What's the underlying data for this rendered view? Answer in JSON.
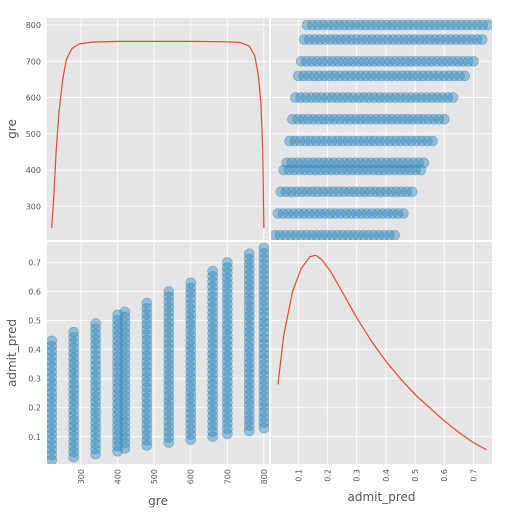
{
  "chart_data": {
    "type": "scatter-matrix",
    "variables": [
      "gre",
      "admit_pred"
    ],
    "colors": {
      "background": "#e5e5e5",
      "grid": "#ffffff",
      "points": "#348abd",
      "kde": "#e24a33"
    },
    "grid": true,
    "panels": [
      {
        "row": 0,
        "col": 0,
        "type": "line",
        "name": "gre-kde",
        "x_range": [
          220,
          800
        ],
        "y_range_labels": [
          220,
          800
        ],
        "kde_curve_value": [
          [
            220,
            240
          ],
          [
            226,
            330
          ],
          [
            232,
            450
          ],
          [
            240,
            560
          ],
          [
            250,
            650
          ],
          [
            260,
            705
          ],
          [
            275,
            735
          ],
          [
            295,
            748
          ],
          [
            330,
            753
          ],
          [
            400,
            755
          ],
          [
            500,
            755
          ],
          [
            600,
            755
          ],
          [
            700,
            754
          ],
          [
            735,
            752
          ],
          [
            760,
            742
          ],
          [
            775,
            715
          ],
          [
            785,
            660
          ],
          [
            792,
            580
          ],
          [
            797,
            450
          ],
          [
            800,
            240
          ]
        ]
      },
      {
        "row": 0,
        "col": 1,
        "type": "scatter",
        "name": "gre-vs-admit_pred",
        "x_variable": "admit_pred",
        "y_variable": "gre",
        "x_range": [
          0.02,
          0.75
        ],
        "y_range": [
          218,
          803
        ],
        "x_ticks": [
          0.1,
          0.2,
          0.3,
          0.4,
          0.5,
          0.6,
          0.7
        ],
        "y_ticks": [
          300,
          400,
          500,
          600,
          700,
          800
        ],
        "y_tick_labels": [
          "300",
          "400",
          "500",
          "600",
          "700",
          "800"
        ],
        "rows": [
          {
            "y": 220,
            "x_min": 0.02,
            "x_max": 0.43
          },
          {
            "y": 280,
            "x_min": 0.03,
            "x_max": 0.46
          },
          {
            "y": 340,
            "x_min": 0.04,
            "x_max": 0.49
          },
          {
            "y": 400,
            "x_min": 0.05,
            "x_max": 0.52
          },
          {
            "y": 420,
            "x_min": 0.06,
            "x_max": 0.53
          },
          {
            "y": 480,
            "x_min": 0.07,
            "x_max": 0.56
          },
          {
            "y": 540,
            "x_min": 0.08,
            "x_max": 0.6
          },
          {
            "y": 600,
            "x_min": 0.09,
            "x_max": 0.63
          },
          {
            "y": 660,
            "x_min": 0.1,
            "x_max": 0.67
          },
          {
            "y": 700,
            "x_min": 0.11,
            "x_max": 0.7
          },
          {
            "y": 760,
            "x_min": 0.12,
            "x_max": 0.73
          },
          {
            "y": 800,
            "x_min": 0.13,
            "x_max": 0.75
          }
        ]
      },
      {
        "row": 1,
        "col": 0,
        "type": "scatter",
        "name": "admit_pred-vs-gre",
        "x_variable": "gre",
        "y_variable": "admit_pred",
        "x_range": [
          218,
          803
        ],
        "y_range": [
          0.02,
          0.75
        ],
        "x_ticks": [
          300,
          400,
          500,
          600,
          700,
          800
        ],
        "y_ticks": [
          0.1,
          0.2,
          0.3,
          0.4,
          0.5,
          0.6,
          0.7
        ],
        "y_tick_labels": [
          "0.1",
          "0.2",
          "0.3",
          "0.4",
          "0.5",
          "0.6",
          "0.7"
        ]
      },
      {
        "row": 1,
        "col": 1,
        "type": "line",
        "name": "admit_pred-kde",
        "x_range": [
          0.02,
          0.75
        ],
        "x_ticks": [
          0.1,
          0.2,
          0.3,
          0.4,
          0.5,
          0.6,
          0.7
        ],
        "x_tick_labels": [
          "0.1",
          "0.2",
          "0.3",
          "0.4",
          "0.5",
          "0.6",
          "0.7"
        ],
        "kde_curve_value": [
          [
            0.03,
            0.28
          ],
          [
            0.05,
            0.45
          ],
          [
            0.08,
            0.6
          ],
          [
            0.11,
            0.68
          ],
          [
            0.14,
            0.72
          ],
          [
            0.16,
            0.725
          ],
          [
            0.18,
            0.71
          ],
          [
            0.21,
            0.67
          ],
          [
            0.25,
            0.6
          ],
          [
            0.3,
            0.51
          ],
          [
            0.35,
            0.43
          ],
          [
            0.4,
            0.36
          ],
          [
            0.45,
            0.3
          ],
          [
            0.5,
            0.245
          ],
          [
            0.55,
            0.2
          ],
          [
            0.6,
            0.155
          ],
          [
            0.65,
            0.115
          ],
          [
            0.7,
            0.08
          ],
          [
            0.745,
            0.055
          ]
        ]
      }
    ],
    "x_axis_bottom": {
      "left": {
        "label": "gre",
        "ticks": [
          "300",
          "400",
          "500",
          "600",
          "700",
          "800"
        ]
      },
      "right": {
        "label": "admit_pred",
        "ticks": [
          "0.1",
          "0.2",
          "0.3",
          "0.4",
          "0.5",
          "0.6",
          "0.7"
        ]
      }
    },
    "y_axis_left": {
      "top": {
        "label": "gre",
        "ticks": [
          "300",
          "400",
          "500",
          "600",
          "700",
          "800"
        ]
      },
      "bottom": {
        "label": "admit_pred",
        "ticks": [
          "0.1",
          "0.2",
          "0.3",
          "0.4",
          "0.5",
          "0.6",
          "0.7"
        ]
      }
    }
  }
}
